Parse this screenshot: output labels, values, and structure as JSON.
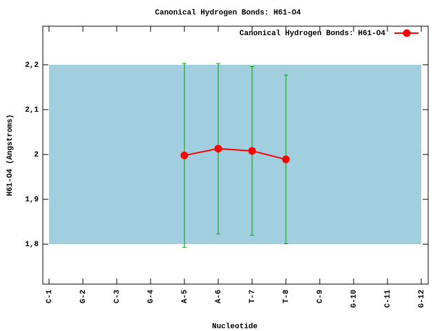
{
  "chart_data": {
    "type": "line",
    "title": "Canonical Hydrogen Bonds: H61-O4",
    "x_label": "Nucleotide",
    "y_label": "H61-O4 (Angstroms)",
    "categories": [
      "C-1",
      "G-2",
      "C-3",
      "G-4",
      "A-5",
      "A-6",
      "T-7",
      "T-8",
      "C-9",
      "G-10",
      "C-11",
      "G-12"
    ],
    "series": [
      {
        "name": "Canonical Hydrogen Bonds: H61-O4",
        "color": "#ff0000",
        "error_color": "#00a000",
        "values": [
          null,
          null,
          null,
          null,
          1.998,
          2.013,
          2.008,
          1.989,
          null,
          null,
          null,
          null
        ],
        "errors": [
          null,
          null,
          null,
          null,
          0.205,
          0.19,
          0.188,
          0.188,
          null,
          null,
          null,
          null
        ]
      }
    ],
    "band": [
      1.8,
      2.2
    ],
    "band_color": "#a2cfdf",
    "ylim": [
      1.711,
      2.286
    ],
    "yticks": [
      {
        "value": 1.8,
        "label": "1,8"
      },
      {
        "value": 1.9,
        "label": "1,9"
      },
      2,
      {
        "value": 2.1,
        "label": "2,1"
      },
      {
        "value": 2.2,
        "label": "2,2"
      }
    ],
    "legend": "top-right"
  }
}
